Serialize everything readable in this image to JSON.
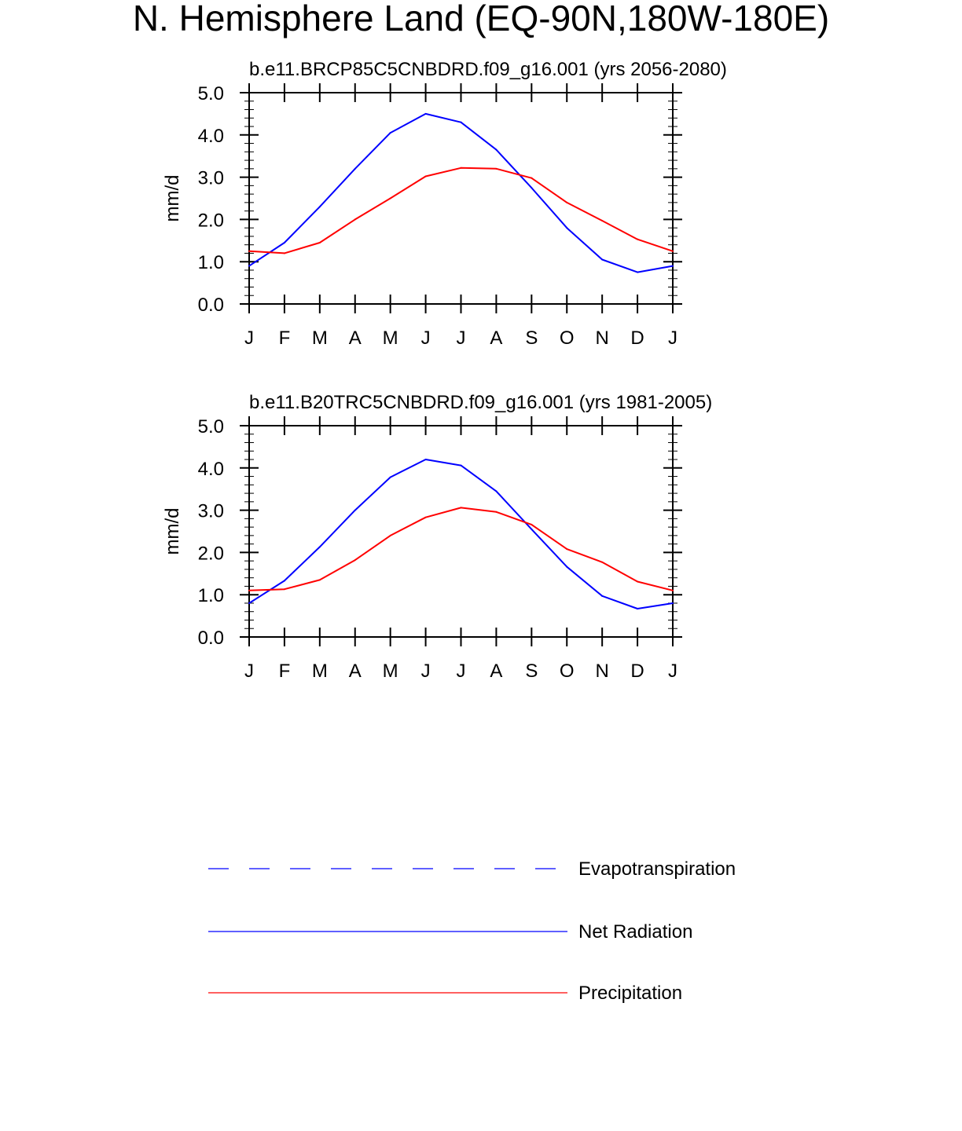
{
  "page_title": "N. Hemisphere Land (EQ-90N,180W-180E)",
  "chart_data": [
    {
      "type": "line",
      "title": "b.e11.BRCP85C5CNBDRD.f09_g16.001 (yrs 2056-2080)",
      "xlabel": "",
      "ylabel": "mm/d",
      "categories": [
        "J",
        "F",
        "M",
        "A",
        "M",
        "J",
        "J",
        "A",
        "S",
        "O",
        "N",
        "D",
        "J"
      ],
      "ylim": [
        0,
        5
      ],
      "yticks": [
        "0.0",
        "1.0",
        "2.0",
        "3.0",
        "4.0",
        "5.0"
      ],
      "grid": false,
      "series": [
        {
          "name": "Net Radiation",
          "color": "#0000ff",
          "values": [
            0.9,
            1.45,
            2.3,
            3.2,
            4.05,
            4.5,
            4.3,
            3.65,
            2.75,
            1.8,
            1.05,
            0.75,
            0.9
          ]
        },
        {
          "name": "Precipitation",
          "color": "#ff0000",
          "values": [
            1.25,
            1.2,
            1.45,
            2.0,
            2.5,
            3.02,
            3.22,
            3.2,
            2.98,
            2.4,
            1.97,
            1.53,
            1.25
          ]
        }
      ]
    },
    {
      "type": "line",
      "title": "b.e11.B20TRC5CNBDRD.f09_g16.001 (yrs 1981-2005)",
      "xlabel": "",
      "ylabel": "mm/d",
      "categories": [
        "J",
        "F",
        "M",
        "A",
        "M",
        "J",
        "J",
        "A",
        "S",
        "O",
        "N",
        "D",
        "J"
      ],
      "ylim": [
        0,
        5
      ],
      "yticks": [
        "0.0",
        "1.0",
        "2.0",
        "3.0",
        "4.0",
        "5.0"
      ],
      "grid": false,
      "series": [
        {
          "name": "Net Radiation",
          "color": "#0000ff",
          "values": [
            0.8,
            1.33,
            2.13,
            3.0,
            3.78,
            4.2,
            4.06,
            3.45,
            2.55,
            1.66,
            0.97,
            0.67,
            0.8
          ]
        },
        {
          "name": "Precipitation",
          "color": "#ff0000",
          "values": [
            1.1,
            1.13,
            1.35,
            1.82,
            2.4,
            2.83,
            3.06,
            2.96,
            2.66,
            2.08,
            1.77,
            1.31,
            1.1
          ]
        }
      ]
    }
  ],
  "legend": [
    {
      "label": "Evapotranspiration",
      "color": "#0000ff",
      "style": "dashed"
    },
    {
      "label": "Net Radiation",
      "color": "#0000ff",
      "style": "solid"
    },
    {
      "label": "Precipitation",
      "color": "#ff0000",
      "style": "solid"
    }
  ]
}
